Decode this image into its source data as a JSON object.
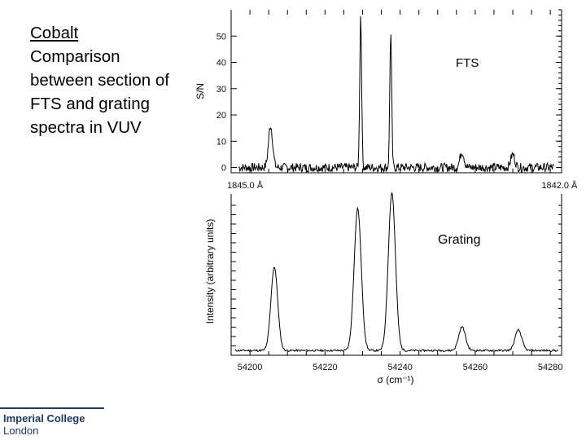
{
  "slide": {
    "title_line1": "Cobalt",
    "title_rest": [
      "Comparison",
      "between section of",
      "FTS and grating",
      "spectra in VUV"
    ]
  },
  "logo": {
    "line1": "Imperial College",
    "line2": "London"
  },
  "colors": {
    "line": "#000000",
    "logo": "#1f3864"
  },
  "chart_data": [
    {
      "type": "line",
      "annotation": "FTS",
      "ylabel": "S/N",
      "ylim": [
        -2,
        60
      ],
      "yticks": [
        "0",
        "10",
        "20",
        "30",
        "40",
        "50"
      ],
      "ytick_values": [
        0,
        10,
        20,
        30,
        40,
        50
      ],
      "xlim": [
        54195,
        54283
      ],
      "x_end_labels": [
        "1845.0 Å",
        "1842.0 Å"
      ],
      "x_end_values": [
        54200,
        54282
      ],
      "grid": false,
      "baseline": 0,
      "peaks": [
        {
          "x": 54205.5,
          "y": 16
        },
        {
          "x": 54229.5,
          "y": 58
        },
        {
          "x": 54237.5,
          "y": 51
        },
        {
          "x": 54256.5,
          "y": 6
        },
        {
          "x": 54270.0,
          "y": 5
        }
      ]
    },
    {
      "type": "line",
      "annotation": "Grating",
      "ylabel": "Intensity (arbitrary units)",
      "xlabel": "σ (cm⁻¹)",
      "xlim": [
        54195,
        54283
      ],
      "xticks": [
        "54200",
        "54220",
        "54240",
        "54260",
        "54280"
      ],
      "xtick_values": [
        54200,
        54220,
        54240,
        54260,
        54280
      ],
      "ylim": [
        0,
        1
      ],
      "grid": false,
      "baseline": 0.03,
      "peaks": [
        {
          "x": 54206.5,
          "y": 0.53
        },
        {
          "x": 54228.7,
          "y": 0.9
        },
        {
          "x": 54237.8,
          "y": 1.0
        },
        {
          "x": 54256.5,
          "y": 0.15
        },
        {
          "x": 54271.5,
          "y": 0.13
        }
      ]
    }
  ]
}
